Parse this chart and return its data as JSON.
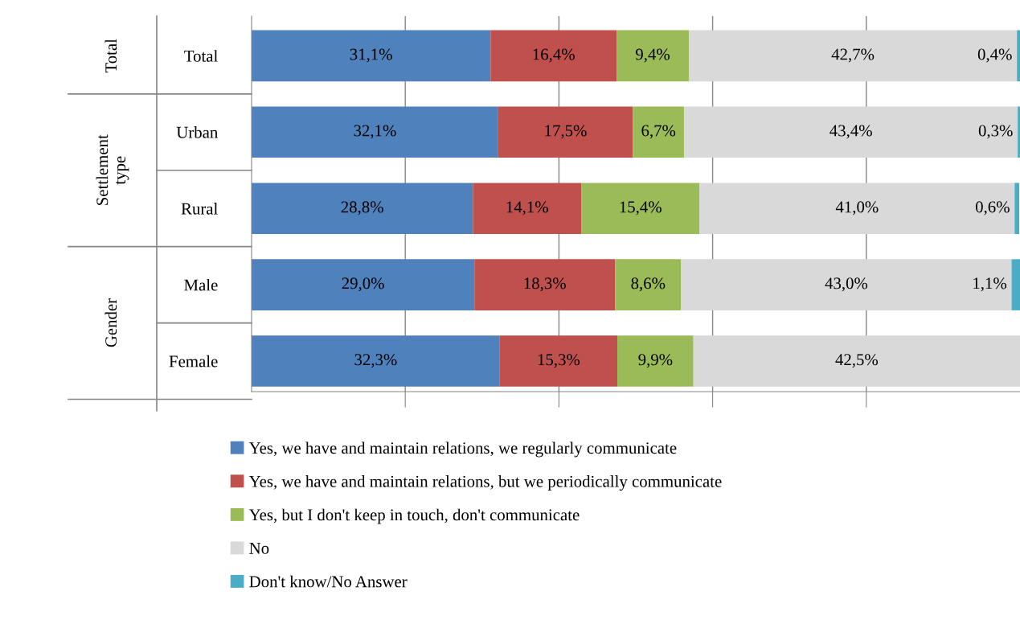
{
  "chart_data": {
    "type": "bar",
    "orientation": "horizontal",
    "stacked": true,
    "categories": [
      "Total",
      "Urban",
      "Rural",
      "Male",
      "Female"
    ],
    "annotations": [
      "Total",
      "Settlement type",
      "Gender"
    ],
    "series": [
      {
        "name": "Yes, we have and maintain relations, we regularly communicate",
        "color": "#4f81bd",
        "values": [
          31.1,
          32.1,
          28.8,
          29.0,
          32.3
        ],
        "value_labels": [
          "31,1%",
          "32,1%",
          "28,8%",
          "29,0%",
          "32,3%"
        ]
      },
      {
        "name": "Yes, we have and maintain relations, but we periodically communicate",
        "color": "#c0504d",
        "values": [
          16.4,
          17.5,
          14.1,
          18.3,
          15.3
        ],
        "value_labels": [
          "16,4%",
          "17,5%",
          "14,1%",
          "18,3%",
          "15,3%"
        ]
      },
      {
        "name": "Yes, but I don't keep in touch, don't communicate",
        "color": "#9bbb59",
        "values": [
          9.4,
          6.7,
          15.4,
          8.6,
          9.9
        ],
        "value_labels": [
          "9,4%",
          "6,7%",
          "15,4%",
          "8,6%",
          "9,9%"
        ]
      },
      {
        "name": "No",
        "color": "#d9d9d9",
        "values": [
          42.7,
          43.4,
          41.0,
          43.0,
          42.5
        ],
        "value_labels": [
          "42,7%",
          "43,4%",
          "41,0%",
          "43,0%",
          "42,5%"
        ]
      },
      {
        "name": "Don't know/No Answer",
        "color": "#4bacc6",
        "values": [
          0.4,
          0.3,
          0.6,
          1.1,
          0.0
        ],
        "value_labels": [
          "0,4%",
          "0,3%",
          "0,6%",
          "1,1%",
          null
        ]
      }
    ],
    "xlim": [
      0,
      100
    ],
    "xticks": [
      {
        "value": 20,
        "label": null
      },
      {
        "value": 40,
        "label": null
      },
      {
        "value": 60,
        "label": null
      },
      {
        "value": 80,
        "label": null
      }
    ],
    "grid": "x",
    "legend": "bottom",
    "tick_labels": "y"
  }
}
